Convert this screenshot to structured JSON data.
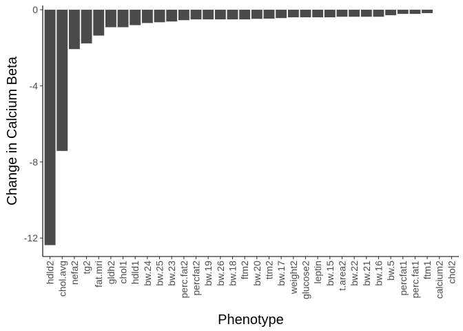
{
  "chart_data": {
    "type": "bar",
    "xlabel": "Phenotype",
    "ylabel": "Change in Calcium Beta",
    "ylim": [
      -12.97,
      0.22
    ],
    "yticks": [
      0,
      -4,
      -8,
      -12
    ],
    "ytick_labels": [
      "0",
      "-4",
      "-8",
      "-12"
    ],
    "grid": false,
    "bar_color": "#4a4a4a",
    "categories": [
      "hdld2",
      "chol.avg",
      "nefa2",
      "tg2",
      "fat.mri",
      "gldh2",
      "chol1",
      "hdld1",
      "bw.24",
      "bw.25",
      "bw.23",
      "perc.fat2",
      "percfat2",
      "bw.19",
      "bw.26",
      "bw.18",
      "ftm2",
      "bw.20",
      "ttm2",
      "bw.17",
      "weight2",
      "glucose2",
      "leptin",
      "bw.15",
      "t.area2",
      "bw.22",
      "bw.21",
      "bw.16",
      "bw.5",
      "percfat1",
      "perc.fat1",
      "ftm1",
      "calcium2",
      "chol2"
    ],
    "values": [
      -12.37,
      -7.42,
      -2.07,
      -1.77,
      -1.36,
      -0.92,
      -0.92,
      -0.81,
      -0.7,
      -0.66,
      -0.62,
      -0.55,
      -0.51,
      -0.51,
      -0.51,
      -0.51,
      -0.51,
      -0.48,
      -0.47,
      -0.44,
      -0.4,
      -0.4,
      -0.4,
      -0.4,
      -0.37,
      -0.37,
      -0.37,
      -0.37,
      -0.29,
      -0.22,
      -0.22,
      -0.18,
      0,
      0
    ]
  }
}
